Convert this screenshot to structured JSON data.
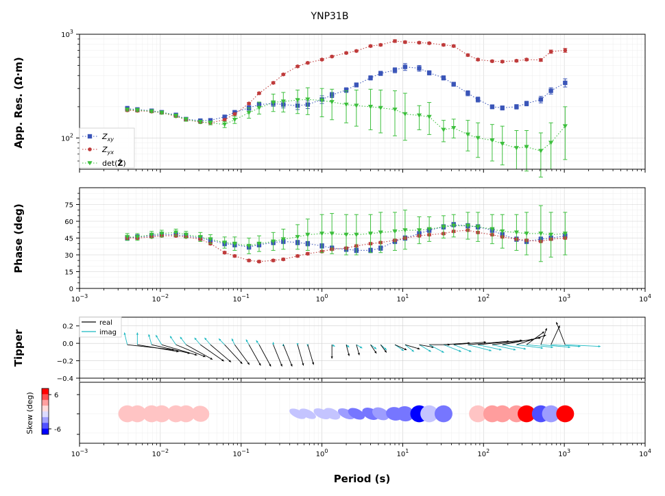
{
  "figure": {
    "title": "YNP31B",
    "xlabel": "Period (s)"
  },
  "colors": {
    "zxy": "#3a55b8",
    "zyx": "#bf3b3b",
    "det": "#3cbf3c",
    "real": "#000000",
    "imag": "#17b7c0"
  },
  "chart_data": [
    {
      "panel": "apparent-resistivity",
      "type": "scatter",
      "ylabel": "App. Res. (Ω·m)",
      "xscale": "log",
      "yscale": "log",
      "xlim": [
        0.001,
        10000
      ],
      "ylim": [
        50,
        1000
      ],
      "grid": true,
      "legend": "bottom-left",
      "x": [
        0.0039,
        0.0052,
        0.0078,
        0.0104,
        0.0156,
        0.0208,
        0.0313,
        0.0417,
        0.0625,
        0.0833,
        0.125,
        0.167,
        0.25,
        0.333,
        0.5,
        0.667,
        1.0,
        1.33,
        2.0,
        2.67,
        4.0,
        5.33,
        8.0,
        10.7,
        16.0,
        21.3,
        32.0,
        42.7,
        64.0,
        85.3,
        128,
        171,
        256,
        341,
        512,
        683,
        1024
      ],
      "series": [
        {
          "name": "Z_xy",
          "marker": "square",
          "values": [
            192,
            188,
            183,
            177,
            167,
            152,
            147,
            148,
            160,
            177,
            195,
            210,
            215,
            210,
            205,
            210,
            235,
            260,
            290,
            325,
            380,
            420,
            450,
            485,
            470,
            425,
            380,
            330,
            270,
            235,
            200,
            195,
            200,
            215,
            235,
            285,
            340
          ],
          "err_low": [
            182,
            180,
            176,
            170,
            160,
            146,
            142,
            142,
            154,
            170,
            185,
            200,
            202,
            195,
            188,
            192,
            215,
            245,
            275,
            310,
            362,
            400,
            425,
            448,
            440,
            405,
            362,
            315,
            255,
            222,
            191,
            186,
            190,
            204,
            218,
            265,
            310
          ],
          "err_high": [
            202,
            196,
            190,
            184,
            174,
            158,
            152,
            154,
            166,
            184,
            205,
            220,
            228,
            225,
            222,
            228,
            255,
            275,
            305,
            340,
            398,
            440,
            475,
            522,
            500,
            445,
            398,
            345,
            285,
            248,
            209,
            204,
            210,
            226,
            252,
            305,
            372
          ]
        },
        {
          "name": "Z_yx",
          "marker": "circle",
          "values": [
            185,
            183,
            180,
            175,
            162,
            150,
            142,
            140,
            150,
            170,
            215,
            270,
            340,
            410,
            490,
            530,
            570,
            610,
            660,
            690,
            770,
            790,
            860,
            840,
            830,
            820,
            790,
            770,
            630,
            570,
            550,
            545,
            555,
            570,
            565,
            680,
            700
          ],
          "err_low": [
            180,
            178,
            175,
            170,
            158,
            146,
            139,
            137,
            147,
            166,
            210,
            264,
            332,
            402,
            480,
            520,
            558,
            598,
            646,
            676,
            754,
            772,
            835,
            820,
            812,
            802,
            772,
            752,
            614,
            556,
            538,
            532,
            542,
            556,
            548,
            655,
            670
          ],
          "err_high": [
            190,
            188,
            185,
            180,
            166,
            154,
            145,
            143,
            153,
            174,
            220,
            276,
            348,
            418,
            500,
            540,
            582,
            622,
            674,
            704,
            786,
            808,
            885,
            860,
            848,
            838,
            808,
            788,
            646,
            584,
            562,
            558,
            568,
            584,
            582,
            705,
            730
          ]
        },
        {
          "name": "det(Ẑ)",
          "marker": "triangle",
          "values": [
            188,
            186,
            181,
            176,
            164,
            151,
            143,
            140,
            135,
            150,
            175,
            195,
            220,
            225,
            232,
            235,
            230,
            222,
            210,
            205,
            200,
            195,
            188,
            170,
            165,
            160,
            120,
            125,
            108,
            100,
            95,
            88,
            80,
            82,
            75,
            90,
            130
          ],
          "err_low": [
            182,
            180,
            176,
            170,
            158,
            145,
            138,
            134,
            126,
            138,
            155,
            170,
            180,
            178,
            172,
            168,
            160,
            150,
            140,
            130,
            120,
            112,
            105,
            95,
            120,
            108,
            92,
            100,
            75,
            65,
            60,
            55,
            50,
            48,
            42,
            50,
            62
          ],
          "err_high": [
            194,
            192,
            186,
            182,
            170,
            157,
            148,
            146,
            144,
            162,
            195,
            222,
            265,
            275,
            290,
            305,
            300,
            295,
            285,
            290,
            295,
            290,
            285,
            270,
            205,
            220,
            148,
            152,
            148,
            140,
            135,
            130,
            118,
            118,
            112,
            140,
            200
          ]
        }
      ]
    },
    {
      "panel": "phase",
      "type": "scatter",
      "ylabel": "Phase (deg)",
      "xscale": "log",
      "xlim": [
        0.001,
        10000
      ],
      "ylim": [
        0,
        90
      ],
      "yticks": [
        "0",
        "15",
        "30",
        "45",
        "60",
        "75"
      ],
      "grid": true,
      "x": [
        0.0039,
        0.0052,
        0.0078,
        0.0104,
        0.0156,
        0.0208,
        0.0313,
        0.0417,
        0.0625,
        0.0833,
        0.125,
        0.167,
        0.25,
        0.333,
        0.5,
        0.667,
        1.0,
        1.33,
        2.0,
        2.67,
        4.0,
        5.33,
        8.0,
        10.7,
        16.0,
        21.3,
        32.0,
        42.7,
        64.0,
        85.3,
        128,
        171,
        256,
        341,
        512,
        683,
        1024
      ],
      "series": [
        {
          "name": "Z_xy",
          "marker": "square",
          "values": [
            45,
            46,
            47,
            48,
            48,
            47,
            45,
            43,
            40,
            39,
            37,
            39,
            41,
            42,
            41,
            40,
            38,
            36,
            35,
            34,
            34,
            36,
            42,
            45,
            49,
            52,
            55,
            57,
            56,
            55,
            52,
            48,
            44,
            42,
            44,
            45,
            47
          ],
          "err_low": [
            43,
            44,
            45,
            46,
            46,
            45,
            43,
            41,
            38,
            37,
            35,
            37,
            39,
            40,
            39,
            38,
            36,
            34,
            33,
            32,
            32,
            34,
            40,
            43,
            47,
            50,
            53,
            55,
            54,
            53,
            50,
            46,
            42,
            40,
            42,
            43,
            45
          ],
          "err_high": [
            47,
            48,
            49,
            50,
            50,
            49,
            47,
            45,
            42,
            41,
            39,
            41,
            43,
            44,
            43,
            42,
            40,
            38,
            37,
            36,
            36,
            38,
            44,
            47,
            51,
            54,
            57,
            59,
            58,
            57,
            54,
            50,
            46,
            44,
            46,
            47,
            49
          ]
        },
        {
          "name": "Z_yx",
          "marker": "circle",
          "values": [
            45,
            45,
            46,
            47,
            47,
            46,
            44,
            40,
            32,
            29,
            25,
            24,
            25,
            26,
            29,
            31,
            33,
            35,
            36,
            38,
            40,
            41,
            43,
            45,
            47,
            48,
            49,
            51,
            52,
            50,
            48,
            46,
            44,
            43,
            42,
            44,
            45
          ],
          "err_low": [
            44,
            44,
            45,
            46,
            46,
            45,
            43,
            39,
            31,
            28,
            24,
            23,
            24,
            25,
            28,
            30,
            32,
            34,
            35,
            37,
            39,
            40,
            42,
            44,
            46,
            47,
            48,
            50,
            51,
            49,
            47,
            45,
            43,
            42,
            41,
            43,
            44
          ],
          "err_high": [
            46,
            46,
            47,
            48,
            48,
            47,
            45,
            41,
            33,
            30,
            26,
            25,
            26,
            27,
            30,
            32,
            34,
            36,
            37,
            39,
            41,
            42,
            44,
            46,
            48,
            49,
            50,
            52,
            53,
            51,
            49,
            47,
            45,
            44,
            43,
            45,
            46
          ]
        },
        {
          "name": "det(Ẑ)",
          "marker": "triangle",
          "values": [
            46,
            46,
            48,
            49,
            50,
            48,
            46,
            44,
            41,
            40,
            38,
            40,
            42,
            44,
            46,
            48,
            49,
            49,
            48,
            48,
            49,
            50,
            51,
            52,
            52,
            53,
            55,
            56,
            56,
            55,
            53,
            51,
            50,
            49,
            49,
            48,
            49
          ],
          "err_low": [
            43,
            43,
            45,
            46,
            47,
            45,
            42,
            40,
            36,
            34,
            31,
            33,
            34,
            35,
            35,
            34,
            32,
            31,
            30,
            30,
            32,
            32,
            34,
            35,
            40,
            42,
            45,
            46,
            44,
            42,
            40,
            36,
            34,
            30,
            24,
            28,
            30
          ],
          "err_high": [
            49,
            49,
            51,
            52,
            53,
            51,
            50,
            48,
            46,
            46,
            45,
            47,
            50,
            53,
            57,
            62,
            66,
            67,
            66,
            66,
            66,
            68,
            68,
            70,
            64,
            64,
            65,
            66,
            68,
            68,
            66,
            66,
            66,
            68,
            74,
            68,
            68
          ]
        }
      ]
    },
    {
      "panel": "tipper",
      "type": "quiver",
      "ylabel": "Tipper",
      "xscale": "log",
      "xlim": [
        0.001,
        10000
      ],
      "ylim": [
        -0.4,
        0.3
      ],
      "yticks": [
        "−0.4",
        "−0.2",
        "0.0",
        "0.2"
      ],
      "grid": true,
      "legend": "top-left",
      "x": [
        0.0039,
        0.0052,
        0.0078,
        0.0104,
        0.0156,
        0.0208,
        0.0313,
        0.0417,
        0.0625,
        0.0833,
        0.125,
        0.167,
        0.25,
        0.333,
        0.5,
        0.667,
        1.33,
        2.0,
        2.67,
        4.0,
        5.33,
        8.0,
        10.7,
        16.0,
        21.3,
        32.0,
        42.7,
        64.0,
        85.3,
        128,
        171,
        256,
        341,
        512,
        683,
        1024
      ],
      "real_x": [
        0.16,
        0.14,
        0.13,
        0.12,
        0.1,
        0.09,
        0.08,
        0.07,
        0.06,
        0.05,
        0.04,
        0.04,
        0.03,
        0.03,
        0.02,
        0.02,
        0.0,
        0.01,
        0.01,
        0.02,
        0.02,
        0.04,
        0.05,
        0.05,
        0.07,
        0.09,
        0.11,
        0.14,
        0.15,
        0.14,
        0.13,
        0.1,
        0.06,
        0.02,
        0.03,
        -0.03
      ],
      "real_y": [
        -0.06,
        -0.08,
        -0.1,
        -0.12,
        -0.14,
        -0.17,
        -0.19,
        -0.2,
        -0.22,
        -0.23,
        -0.24,
        -0.25,
        -0.25,
        -0.25,
        -0.24,
        -0.23,
        -0.16,
        -0.13,
        -0.12,
        -0.1,
        -0.09,
        -0.06,
        -0.05,
        -0.03,
        0.0,
        0.02,
        0.03,
        0.04,
        0.05,
        0.06,
        0.08,
        0.11,
        0.15,
        0.19,
        0.22,
        0.26
      ],
      "imag_x": [
        -0.01,
        0.0,
        -0.01,
        -0.02,
        -0.02,
        -0.02,
        -0.02,
        -0.02,
        -0.02,
        -0.01,
        -0.01,
        -0.01,
        0.0,
        0.0,
        0.0,
        0.0,
        0.01,
        0.01,
        0.02,
        0.02,
        0.02,
        0.03,
        0.03,
        0.04,
        0.05,
        0.06,
        0.06,
        0.08,
        0.08,
        0.08,
        0.08,
        0.09,
        0.09,
        0.1,
        0.1,
        0.12
      ],
      "imag_y": [
        0.14,
        0.14,
        0.12,
        0.11,
        0.1,
        0.09,
        0.08,
        0.08,
        0.07,
        0.07,
        0.06,
        0.05,
        0.03,
        0.01,
        -0.01,
        -0.02,
        -0.02,
        -0.03,
        -0.04,
        -0.05,
        -0.06,
        -0.07,
        -0.08,
        -0.08,
        -0.09,
        -0.08,
        -0.08,
        -0.07,
        -0.06,
        -0.06,
        -0.05,
        -0.04,
        -0.03,
        -0.03,
        -0.02,
        -0.02
      ],
      "legend_entries": [
        "real",
        "imag"
      ]
    },
    {
      "panel": "skew",
      "type": "scatter",
      "ylabel": "Skew (deg)",
      "xscale": "log",
      "xlim": [
        0.001,
        10000
      ],
      "colorbar_ticks": [
        "6",
        "-6"
      ],
      "x": [
        0.0039,
        0.0052,
        0.0078,
        0.0104,
        0.0156,
        0.0208,
        0.0313,
        0.0417,
        0.0625,
        0.0833,
        0.125,
        0.167,
        0.25,
        0.333,
        0.5,
        0.667,
        1.0,
        1.33,
        2.0,
        2.67,
        4.0,
        5.33,
        8.0,
        10.7,
        16.0,
        21.3,
        32.0,
        42.7,
        64.0,
        85.3,
        128,
        171,
        256,
        341,
        512,
        683,
        1024
      ],
      "skew": [
        1,
        1,
        1,
        1,
        1,
        1,
        1,
        0,
        0,
        0,
        0,
        0,
        0,
        0,
        -1,
        -1,
        -1,
        -1,
        -2,
        -3,
        -3,
        -2,
        -3,
        -3,
        -6,
        -1,
        -3,
        0,
        0,
        1,
        2,
        2,
        2,
        9,
        -4,
        -2,
        9
      ],
      "aspect": [
        0.95,
        0.95,
        0.95,
        0.95,
        0.95,
        0.95,
        0.9,
        0.0,
        0.0,
        0.0,
        0.0,
        0.0,
        0.0,
        0.0,
        0.45,
        0.45,
        0.5,
        0.55,
        0.5,
        0.55,
        0.6,
        0.65,
        0.75,
        0.85,
        0.95,
        0.95,
        0.95,
        0.0,
        0.0,
        0.95,
        0.95,
        0.95,
        0.95,
        0.95,
        0.95,
        0.95,
        0.95
      ]
    }
  ]
}
